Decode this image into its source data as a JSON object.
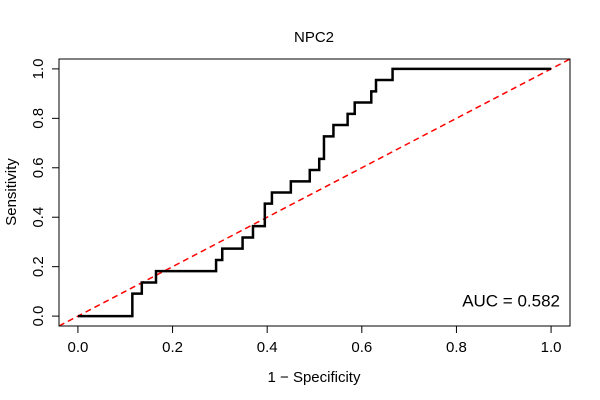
{
  "chart_data": {
    "type": "line",
    "title": "NPC2",
    "x_label": "1 − Specificity",
    "y_label": "Sensitivity",
    "annotation": "AUC = 0.582",
    "xlim": [
      -0.04,
      1.04
    ],
    "ylim": [
      -0.04,
      1.04
    ],
    "xticks": [
      {
        "value": 0,
        "label": "0.0"
      },
      0.2,
      0.4,
      0.6,
      0.8,
      {
        "value": 1,
        "label": "1.0"
      }
    ],
    "yticks": [
      {
        "value": 0,
        "label": "0.0"
      },
      0.2,
      0.4,
      0.6,
      0.8,
      {
        "value": 1,
        "label": "1.0"
      }
    ],
    "series": [
      {
        "color": "#000000",
        "x": [
          0,
          0.115,
          0.115,
          0.135,
          0.135,
          0.165,
          0.165,
          0.292,
          0.292,
          0.305,
          0.305,
          0.348,
          0.348,
          0.37,
          0.37,
          0.395,
          0.395,
          0.41,
          0.41,
          0.45,
          0.45,
          0.49,
          0.49,
          0.51,
          0.51,
          0.52,
          0.52,
          0.54,
          0.54,
          0.57,
          0.57,
          0.585,
          0.585,
          0.62,
          0.62,
          0.63,
          0.63,
          0.665,
          0.665,
          1
        ],
        "values": [
          0,
          0,
          0.091,
          0.091,
          0.136,
          0.136,
          0.182,
          0.182,
          0.227,
          0.227,
          0.273,
          0.273,
          0.318,
          0.318,
          0.364,
          0.364,
          0.455,
          0.455,
          0.5,
          0.5,
          0.545,
          0.545,
          0.591,
          0.591,
          0.636,
          0.636,
          0.727,
          0.727,
          0.773,
          0.773,
          0.818,
          0.818,
          0.864,
          0.864,
          0.909,
          0.909,
          0.955,
          0.955,
          1,
          1
        ]
      }
    ],
    "reference_line_color": "#ff0000"
  }
}
